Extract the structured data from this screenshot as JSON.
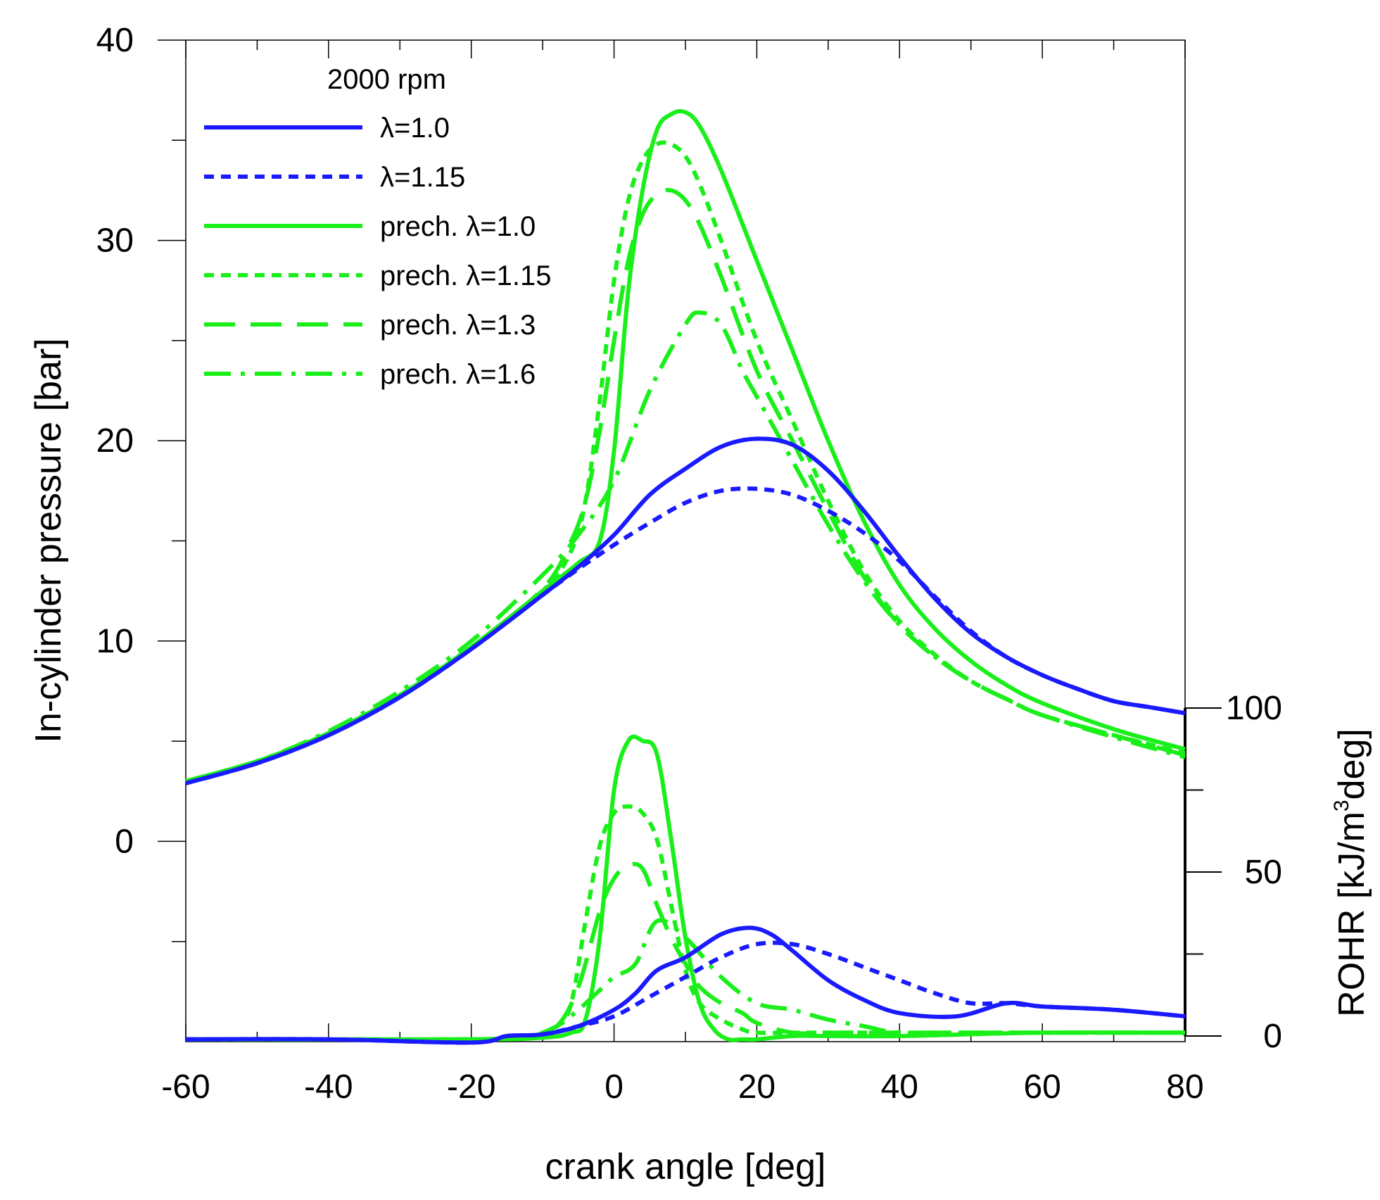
{
  "chart_data": {
    "type": "line",
    "xlabel": "crank angle [deg]",
    "ylabel": "In-cylinder pressure [bar]",
    "ylabel_right": "ROHR [kJ/m³deg]",
    "right_axis_parts": {
      "prefix": "ROHR [kJ/m",
      "superscript": "3",
      "suffix": "deg]"
    },
    "xlim": [
      -60,
      80
    ],
    "ylim": [
      -10,
      40
    ],
    "ylim_right": [
      0,
      100
    ],
    "x_ticks": [
      "-60",
      "-40",
      "-20",
      "0",
      "20",
      "40",
      "60",
      "80"
    ],
    "y_ticks": [
      "0",
      "10",
      "20",
      "30",
      "40"
    ],
    "y_ticks_right": [
      "0",
      "50",
      "100"
    ],
    "legend": {
      "title": "2000 rpm",
      "placement": "top-left",
      "entries": [
        "λ=1.0",
        "λ=1.15",
        "prech. λ=1.0",
        "prech. λ=1.15",
        "prech. λ=1.3",
        "prech. λ=1.6"
      ]
    },
    "colors": {
      "blue": "#1a1aff",
      "green": "#1aef1a"
    },
    "pressure_series": [
      {
        "name": "λ=1.0",
        "color": "blue",
        "dash": "solid",
        "x": [
          -60,
          -50,
          -40,
          -30,
          -20,
          -10,
          -5,
          0,
          5,
          10,
          15,
          20,
          25,
          30,
          35,
          40,
          45,
          50,
          55,
          60,
          65,
          70,
          75,
          80
        ],
        "y": [
          2.9,
          3.9,
          5.3,
          7.2,
          9.6,
          12.3,
          13.7,
          15.3,
          17.3,
          18.6,
          19.7,
          20.1,
          19.8,
          18.5,
          16.5,
          14.2,
          12.1,
          10.4,
          9.2,
          8.3,
          7.6,
          7.0,
          6.7,
          6.4
        ]
      },
      {
        "name": "λ=1.15",
        "color": "blue",
        "dash": "dotted",
        "x": [
          -60,
          -50,
          -40,
          -30,
          -20,
          -10,
          -5,
          0,
          5,
          10,
          15,
          20,
          25,
          30,
          35,
          40,
          45,
          50,
          55,
          60,
          65,
          70,
          75,
          80
        ],
        "y": [
          2.9,
          3.9,
          5.3,
          7.2,
          9.6,
          12.3,
          13.6,
          14.8,
          15.9,
          16.9,
          17.5,
          17.6,
          17.3,
          16.5,
          15.4,
          14.0,
          12.2,
          10.5,
          9.2,
          8.3,
          7.6,
          7.0,
          6.7,
          6.4
        ]
      },
      {
        "name": "prech. λ=1.0",
        "color": "green",
        "dash": "solid",
        "x": [
          -60,
          -50,
          -40,
          -30,
          -20,
          -10,
          -5,
          -2,
          0,
          2,
          4,
          6,
          8,
          10,
          12,
          15,
          20,
          25,
          30,
          35,
          40,
          45,
          50,
          55,
          60,
          70,
          80
        ],
        "y": [
          3.0,
          4.0,
          5.4,
          7.3,
          9.7,
          12.5,
          13.9,
          15.0,
          19.5,
          27.5,
          32.5,
          35.5,
          36.3,
          36.4,
          35.7,
          33.5,
          29.0,
          24.5,
          20.0,
          16.0,
          12.8,
          10.6,
          9.0,
          7.8,
          6.9,
          5.6,
          4.6
        ]
      },
      {
        "name": "prech. λ=1.15",
        "color": "green",
        "dash": "dotted",
        "x": [
          -60,
          -50,
          -40,
          -30,
          -20,
          -10,
          -6,
          -4,
          -2,
          0,
          2,
          4,
          6,
          8,
          10,
          12,
          15,
          20,
          25,
          30,
          35,
          40,
          45,
          50,
          55,
          60,
          70,
          80
        ],
        "y": [
          3.0,
          4.0,
          5.4,
          7.3,
          9.7,
          12.5,
          14.5,
          17.0,
          22.0,
          28.0,
          32.0,
          34.0,
          34.8,
          34.8,
          34.2,
          32.8,
          30.0,
          25.0,
          21.0,
          17.0,
          13.5,
          11.0,
          9.3,
          8.0,
          7.1,
          6.3,
          5.3,
          4.4
        ]
      },
      {
        "name": "prech. λ=1.3",
        "color": "green",
        "dash": "long",
        "x": [
          -60,
          -50,
          -40,
          -30,
          -20,
          -10,
          -6,
          -4,
          -2,
          0,
          2,
          4,
          6,
          8,
          10,
          12,
          15,
          20,
          25,
          30,
          35,
          40,
          45,
          50,
          55,
          60,
          70,
          80
        ],
        "y": [
          3.0,
          4.0,
          5.4,
          7.3,
          9.7,
          12.6,
          15.0,
          17.0,
          20.5,
          25.0,
          29.0,
          31.3,
          32.3,
          32.5,
          32.0,
          30.8,
          28.2,
          23.5,
          20.0,
          16.5,
          13.2,
          10.8,
          9.2,
          8.0,
          7.1,
          6.3,
          5.3,
          4.3
        ]
      },
      {
        "name": "prech. λ=1.6",
        "color": "green",
        "dash": "dashdot",
        "x": [
          -60,
          -50,
          -40,
          -30,
          -20,
          -10,
          -5,
          0,
          5,
          10,
          12,
          15,
          18,
          20,
          25,
          30,
          35,
          40,
          45,
          50,
          55,
          60,
          70,
          80
        ],
        "y": [
          3.0,
          4.0,
          5.5,
          7.5,
          10.0,
          13.3,
          15.3,
          18.0,
          22.5,
          25.8,
          26.4,
          25.8,
          23.5,
          22.2,
          19.0,
          15.8,
          13.0,
          10.8,
          9.2,
          8.0,
          7.1,
          6.3,
          5.2,
          4.2
        ]
      }
    ],
    "rohr_series": [
      {
        "name": "λ=1.0",
        "color": "blue",
        "dash": "solid",
        "x": [
          -60,
          -40,
          -20,
          -15,
          -10,
          -5,
          0,
          3,
          6,
          10,
          15,
          19,
          22,
          25,
          30,
          35,
          40,
          48,
          55,
          60,
          70,
          80
        ],
        "y": [
          -1,
          -1,
          -2,
          0,
          0.5,
          3,
          8,
          13,
          20,
          24,
          31,
          33,
          31,
          26,
          17,
          11,
          7,
          6,
          10,
          9,
          8,
          6
        ]
      },
      {
        "name": "λ=1.15",
        "color": "blue",
        "dash": "dotted",
        "x": [
          -60,
          -40,
          -20,
          -15,
          -10,
          -5,
          0,
          5,
          10,
          15,
          20,
          25,
          30,
          35,
          40,
          45,
          50,
          55,
          60,
          70,
          80
        ],
        "y": [
          -1,
          -1,
          -2,
          0,
          0.5,
          3,
          6,
          12,
          18,
          24,
          28,
          28,
          25,
          21,
          17,
          13,
          10,
          10,
          9,
          8,
          6
        ]
      },
      {
        "name": "prech. λ=1.0",
        "color": "green",
        "dash": "solid",
        "x": [
          -60,
          -20,
          -10,
          -6,
          -4,
          -2,
          0,
          2,
          4,
          6,
          8,
          10,
          12,
          14,
          16,
          18,
          20,
          25,
          30,
          40,
          60,
          80
        ],
        "y": [
          -1,
          -1,
          -0.5,
          1,
          5,
          30,
          75,
          90,
          90,
          86,
          60,
          30,
          10,
          2,
          -1,
          -1,
          -1,
          0,
          0,
          0,
          1,
          1
        ]
      },
      {
        "name": "prech. λ=1.15",
        "color": "green",
        "dash": "dotted",
        "x": [
          -60,
          -20,
          -12,
          -8,
          -6,
          -4,
          -2,
          0,
          2,
          4,
          6,
          8,
          10,
          12,
          15,
          18,
          20,
          25,
          30,
          40,
          60,
          80
        ],
        "y": [
          -1,
          -1,
          0,
          3,
          10,
          35,
          58,
          68,
          70,
          68,
          60,
          40,
          20,
          10,
          5,
          2,
          1,
          1,
          1,
          1,
          1,
          1
        ]
      },
      {
        "name": "prech. λ=1.3",
        "color": "green",
        "dash": "long",
        "x": [
          -60,
          -20,
          -12,
          -8,
          -5,
          -2,
          0,
          2,
          4,
          6,
          8,
          10,
          12,
          15,
          18,
          20,
          25,
          30,
          40,
          60,
          80
        ],
        "y": [
          -1,
          -1,
          0,
          3,
          15,
          38,
          48,
          52,
          51,
          40,
          30,
          22,
          15,
          10,
          7,
          4,
          1,
          1,
          1,
          1,
          1
        ]
      },
      {
        "name": "prech. λ=1.6",
        "color": "green",
        "dash": "dashdot",
        "x": [
          -60,
          -20,
          -12,
          -8,
          -5,
          -2,
          0,
          3,
          6,
          10,
          15,
          20,
          25,
          30,
          35,
          40,
          50,
          60,
          80
        ],
        "y": [
          -1,
          -1,
          0,
          3,
          8,
          14,
          18,
          22,
          35,
          30,
          18,
          10,
          8,
          5,
          3,
          1,
          1,
          1,
          1
        ]
      }
    ]
  }
}
